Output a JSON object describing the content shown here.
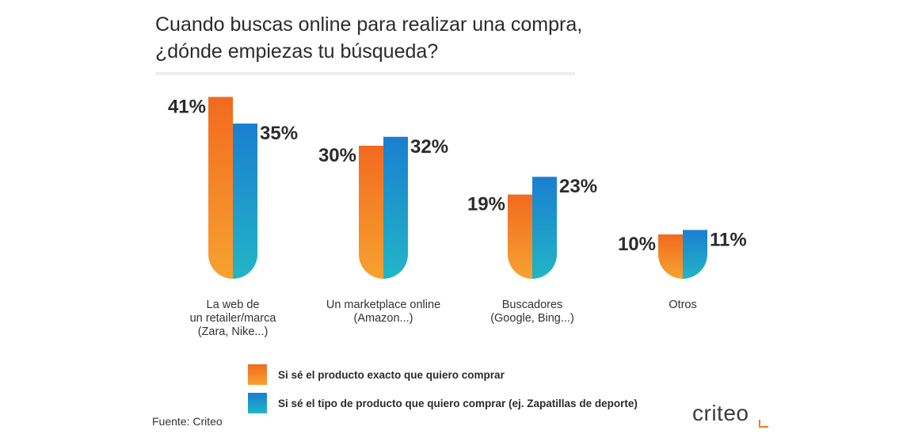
{
  "title_line1": "Cuando buscas online para realizar una compra,",
  "title_line2": "¿dónde empiezas tu búsqueda?",
  "source": "Fuente: Criteo",
  "logo": "criteo",
  "chart_data": {
    "type": "bar",
    "categories": [
      [
        "La web de",
        "un retailer/marca",
        "(Zara, Nike...)"
      ],
      [
        "Un marketplace online",
        "(Amazon...)"
      ],
      [
        "Buscadores",
        "(Google, Bing...)"
      ],
      [
        "Otros"
      ]
    ],
    "series": [
      {
        "name": "Si sé el producto exacto que quiero comprar",
        "values": [
          41,
          30,
          19,
          10
        ],
        "labels": [
          "41%",
          "30%",
          "19%",
          "10%"
        ],
        "color": "#f7781e"
      },
      {
        "name": "Si sé el tipo de producto que quiero comprar (ej. Zapatillas de deporte)",
        "values": [
          35,
          32,
          23,
          11
        ],
        "labels": [
          "35%",
          "32%",
          "23%",
          "11%"
        ],
        "color": "#1a8fd0"
      }
    ],
    "unit": "%",
    "legend": "bottom",
    "grid": false
  },
  "colors": {
    "orange_top": "#f26a1f",
    "orange_bottom": "#f7a230",
    "blue_top": "#1a7fd0",
    "blue_bottom": "#22b5c6"
  }
}
